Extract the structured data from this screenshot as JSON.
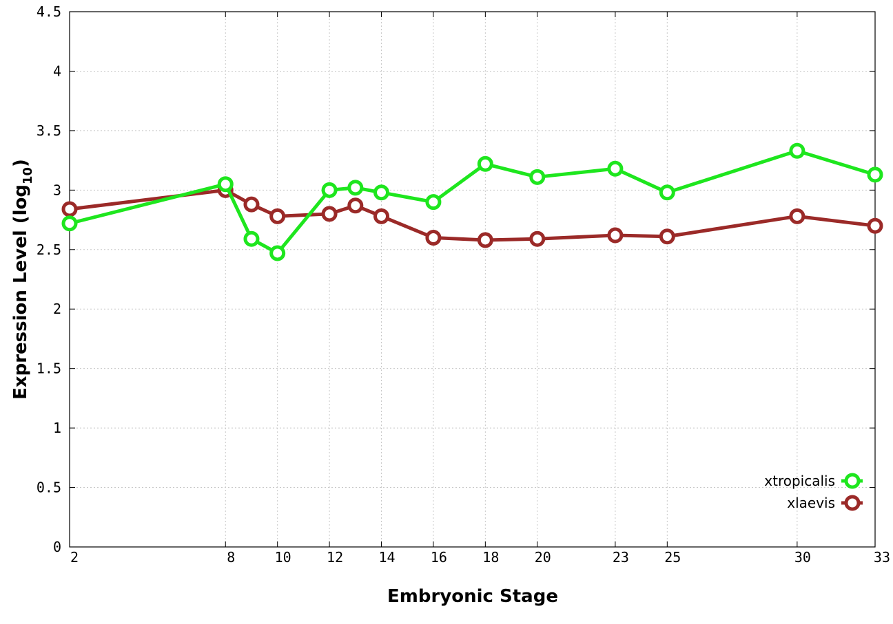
{
  "chart_data": {
    "type": "line",
    "xlabel": "Embryonic Stage",
    "ylabel_main": "Expression Level (log",
    "ylabel_sub": "10",
    "ylabel_close": ")",
    "x": [
      2,
      8,
      9,
      10,
      12,
      13,
      14,
      16,
      18,
      20,
      23,
      25,
      30,
      33
    ],
    "xtick_values": [
      2,
      8,
      10,
      12,
      14,
      16,
      18,
      20,
      23,
      25,
      30,
      33
    ],
    "xtick_labels": [
      "2",
      "8",
      "10",
      "12",
      "14",
      "16",
      "18",
      "20",
      "23",
      "25",
      "30",
      "33"
    ],
    "xlim": [
      2,
      33
    ],
    "ylim": [
      0,
      4.5
    ],
    "ytick_values": [
      0,
      0.5,
      1,
      1.5,
      2,
      2.5,
      3,
      3.5,
      4,
      4.5
    ],
    "ytick_labels": [
      "0",
      "0.5",
      "1",
      "1.5",
      "2",
      "2.5",
      "3",
      "3.5",
      "4",
      "4.5"
    ],
    "grid": true,
    "legend_position": "bottom-right",
    "series": [
      {
        "name": "xtropicalis",
        "color": "#1ee61e",
        "values": [
          2.72,
          3.05,
          2.59,
          2.47,
          3.0,
          3.02,
          2.98,
          2.9,
          3.22,
          3.11,
          3.18,
          2.98,
          3.33,
          3.13
        ]
      },
      {
        "name": "xlaevis",
        "color": "#9b2a28",
        "values": [
          2.84,
          3.0,
          2.88,
          2.78,
          2.8,
          2.87,
          2.78,
          2.6,
          2.58,
          2.59,
          2.62,
          2.61,
          2.78,
          2.7
        ]
      }
    ]
  }
}
